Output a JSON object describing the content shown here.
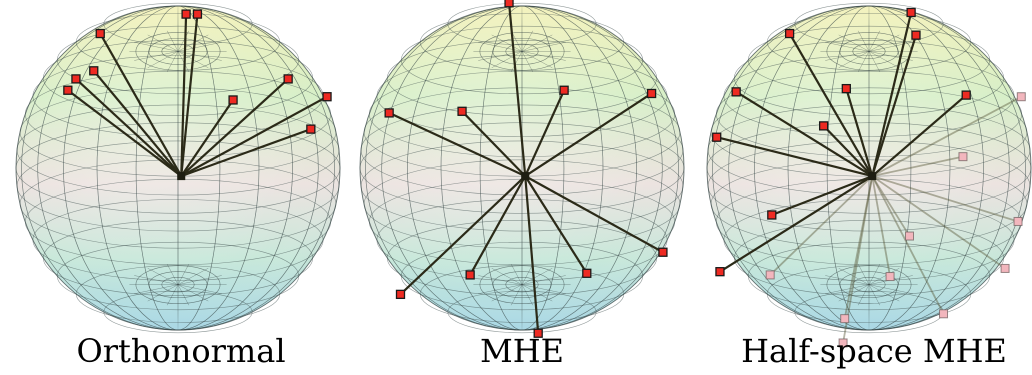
{
  "panels": [
    {
      "caption": "Orthonormal",
      "center": [
        0.02,
        -0.05
      ],
      "points": [
        [
          -0.48,
          0.83
        ],
        [
          0.05,
          0.95
        ],
        [
          0.12,
          0.95
        ],
        [
          0.68,
          0.55
        ],
        [
          0.92,
          0.44
        ],
        [
          -0.63,
          0.55
        ],
        [
          -0.68,
          0.48
        ],
        [
          -0.52,
          0.6
        ],
        [
          0.34,
          0.42
        ],
        [
          0.82,
          0.24
        ]
      ],
      "ghost_points": []
    },
    {
      "caption": "MHE",
      "center": [
        0.02,
        -0.05
      ],
      "points": [
        [
          -0.08,
          1.02
        ],
        [
          0.8,
          0.46
        ],
        [
          0.26,
          0.48
        ],
        [
          -0.37,
          0.35
        ],
        [
          -0.82,
          0.34
        ],
        [
          0.87,
          -0.52
        ],
        [
          0.4,
          -0.65
        ],
        [
          -0.32,
          -0.66
        ],
        [
          -0.75,
          -0.78
        ],
        [
          0.1,
          -1.02
        ]
      ],
      "ghost_points": []
    },
    {
      "caption": "Half-space MHE",
      "center": [
        0.02,
        -0.05
      ],
      "points": [
        [
          -0.49,
          0.83
        ],
        [
          0.26,
          0.96
        ],
        [
          0.29,
          0.82
        ],
        [
          -0.14,
          0.49
        ],
        [
          0.6,
          0.45
        ],
        [
          -0.82,
          0.47
        ],
        [
          -0.28,
          0.26
        ],
        [
          -0.94,
          0.19
        ],
        [
          -0.6,
          -0.29
        ],
        [
          -0.92,
          -0.64
        ]
      ],
      "ghost_points": [
        [
          0.94,
          0.44
        ],
        [
          0.58,
          0.07
        ],
        [
          0.92,
          -0.33
        ],
        [
          0.25,
          -0.42
        ],
        [
          -0.61,
          -0.66
        ],
        [
          0.84,
          -0.62
        ],
        [
          0.13,
          -0.67
        ],
        [
          -0.15,
          -0.93
        ],
        [
          0.46,
          -0.9
        ],
        [
          -0.16,
          -1.08
        ]
      ]
    }
  ]
}
